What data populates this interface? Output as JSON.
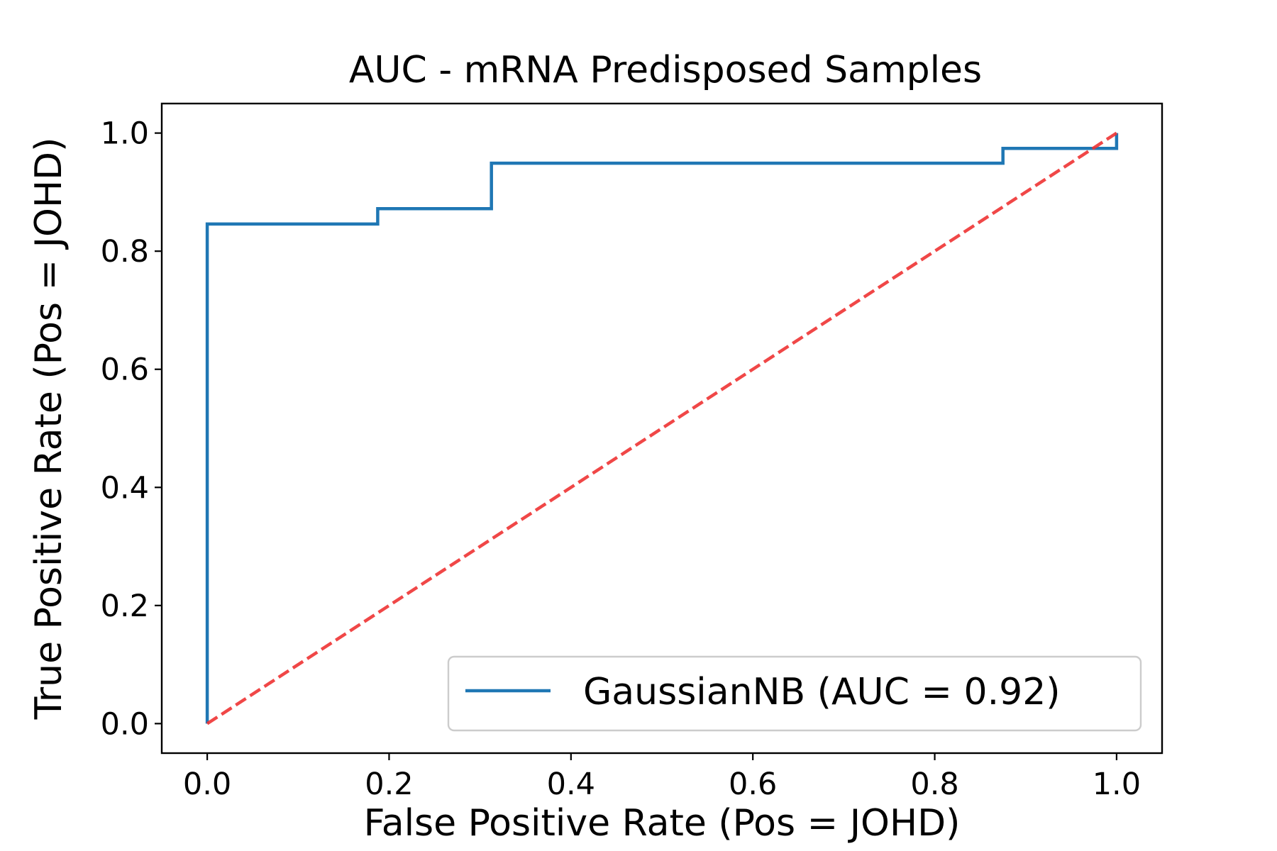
{
  "chart_data": {
    "type": "line",
    "title": "AUC - mRNA Predisposed Samples",
    "xlabel": "False Positive Rate (Pos = JOHD)",
    "ylabel": "True Positive Rate (Pos = JOHD)",
    "xlim": [
      -0.05,
      1.05
    ],
    "ylim": [
      -0.05,
      1.05
    ],
    "xticks": [
      0.0,
      0.2,
      0.4,
      0.6,
      0.8,
      1.0
    ],
    "xtick_labels": [
      "0.0",
      "0.2",
      "0.4",
      "0.6",
      "0.8",
      "1.0"
    ],
    "yticks": [
      0.0,
      0.2,
      0.4,
      0.6,
      0.8,
      1.0
    ],
    "ytick_labels": [
      "0.0",
      "0.2",
      "0.4",
      "0.6",
      "0.8",
      "1.0"
    ],
    "grid": false,
    "legend_position": "bottom-right",
    "series": [
      {
        "name": "GaussianNB (AUC = 0.92)",
        "style": "step",
        "color": "#1f77b4",
        "x": [
          0.0,
          0.0,
          0.0,
          0.1875,
          0.1875,
          0.3125,
          0.3125,
          0.875,
          0.875,
          1.0,
          1.0
        ],
        "y": [
          0.0,
          0.0,
          0.846,
          0.846,
          0.872,
          0.872,
          0.949,
          0.949,
          0.974,
          0.974,
          1.0
        ]
      },
      {
        "style": "dashed",
        "color": "#ee3333",
        "x": [
          0.0,
          1.0
        ],
        "y": [
          0.0,
          1.0
        ]
      }
    ]
  }
}
